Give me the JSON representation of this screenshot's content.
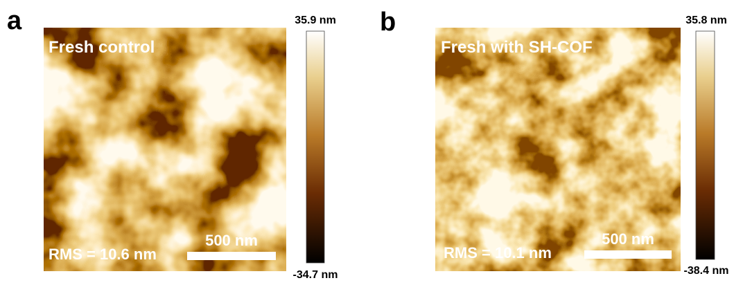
{
  "panels": [
    {
      "label": "a",
      "title": "Fresh control",
      "rms": "RMS = 10.6 nm",
      "scale_bar": "500 nm",
      "colorbar": {
        "max": "35.9 nm",
        "min": "-34.7 nm"
      }
    },
    {
      "label": "b",
      "title": "Fresh with SH-COF",
      "rms": "RMS = 10.1 nm",
      "scale_bar": "500 nm",
      "colorbar": {
        "max": "35.8 nm",
        "min": "-38.4 nm"
      }
    }
  ]
}
